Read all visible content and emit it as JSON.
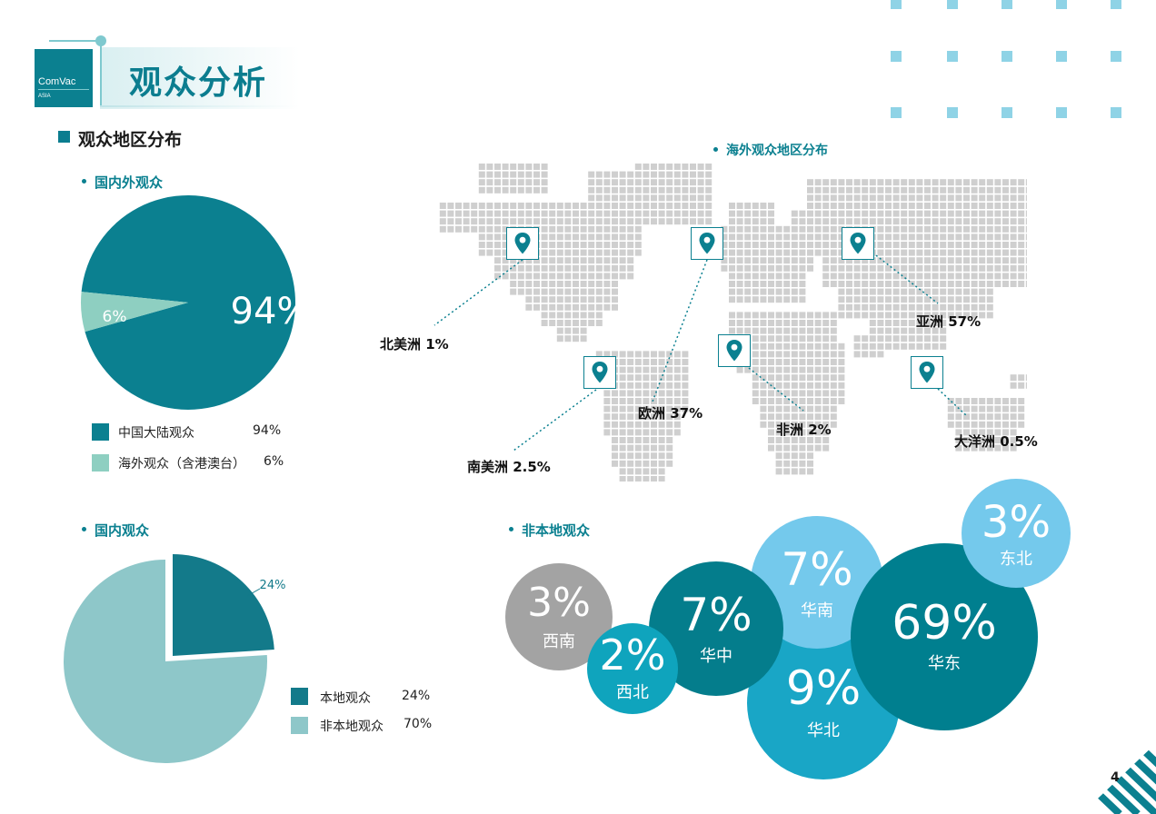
{
  "header": {
    "logo_brand": "ComVac",
    "logo_sub": "ASIA",
    "title": "观众分析"
  },
  "section_heading": "观众地区分布",
  "domestic_overseas": {
    "heading": "国内外观众",
    "big_label": "94%",
    "small_label": "6%",
    "legend": [
      {
        "label": "中国大陆观众",
        "value": "94%",
        "color": "#0b8090"
      },
      {
        "label": "海外观众（含港澳台）",
        "value": "6%",
        "color": "#8ecfc1"
      }
    ]
  },
  "overseas_map": {
    "heading": "海外观众地区分布",
    "regions": [
      {
        "label": "北美洲 1%"
      },
      {
        "label": "南美洲 2.5%"
      },
      {
        "label": "欧洲 37%"
      },
      {
        "label": "非洲 2%"
      },
      {
        "label": "亚洲 57%"
      },
      {
        "label": "大洋洲 0.5%"
      }
    ],
    "icon": "location-pin-icon",
    "dot_color": "#cfcfcf",
    "pin_color": "#0b8090"
  },
  "domestic": {
    "heading": "国内观众",
    "slice_label": "24%",
    "legend": [
      {
        "label": "本地观众",
        "value": "24%",
        "color": "#137a8a"
      },
      {
        "label": "非本地观众",
        "value": "70%",
        "color": "#8ec7c9"
      }
    ]
  },
  "non_local": {
    "heading": "非本地观众",
    "bubbles": [
      {
        "pct": "3%",
        "region": "西南",
        "color": "#a3a3a3"
      },
      {
        "pct": "2%",
        "region": "西北",
        "color": "#0fa4bd"
      },
      {
        "pct": "7%",
        "region": "华中",
        "color": "#047d8c"
      },
      {
        "pct": "7%",
        "region": "华南",
        "color": "#74c9ec"
      },
      {
        "pct": "9%",
        "region": "华北",
        "color": "#19a6c6"
      },
      {
        "pct": "69%",
        "region": "华东",
        "color": "#007f8f"
      },
      {
        "pct": "3%",
        "region": "东北",
        "color": "#74c9ec"
      }
    ]
  },
  "chart_data": [
    {
      "type": "pie",
      "title": "国内外观众",
      "categories": [
        "中国大陆观众",
        "海外观众（含港澳台）"
      ],
      "values": [
        94,
        6
      ]
    },
    {
      "type": "pie",
      "title": "国内观众",
      "categories": [
        "本地观众",
        "非本地观众"
      ],
      "values": [
        24,
        70
      ]
    },
    {
      "type": "bubble",
      "title": "非本地观众",
      "categories": [
        "西南",
        "西北",
        "华中",
        "华南",
        "华北",
        "华东",
        "东北"
      ],
      "values": [
        3,
        2,
        7,
        7,
        9,
        69,
        3
      ]
    }
  ],
  "page_number": "4"
}
